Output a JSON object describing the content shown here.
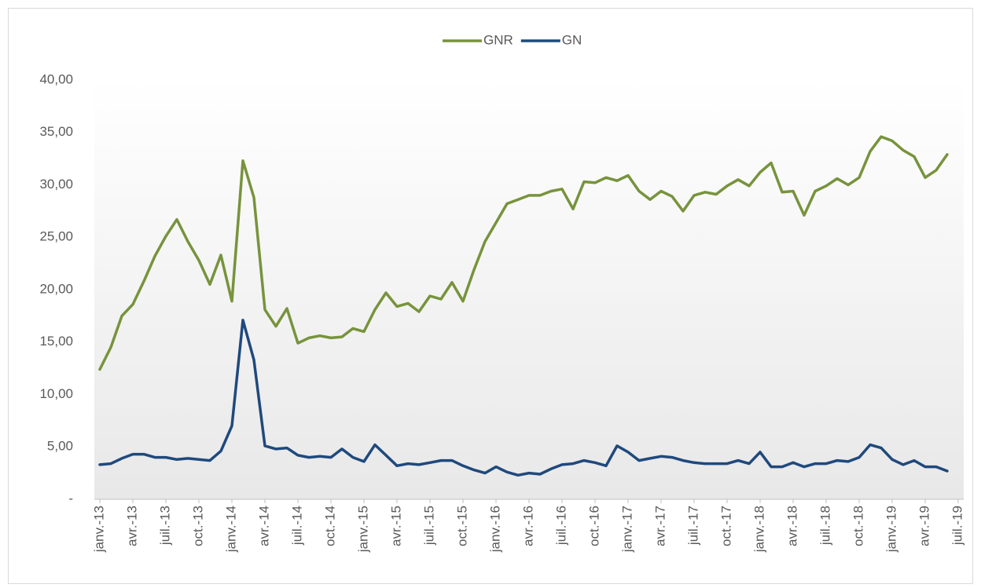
{
  "chart_data": {
    "type": "line",
    "categories": [
      "janv.-13",
      null,
      null,
      "avr.-13",
      null,
      null,
      "juil.-13",
      null,
      null,
      "oct.-13",
      null,
      null,
      "janv.-14",
      null,
      null,
      "avr.-14",
      null,
      null,
      "juil.-14",
      null,
      null,
      "oct.-14",
      null,
      null,
      "janv.-15",
      null,
      null,
      "avr.-15",
      null,
      null,
      "juil.-15",
      null,
      null,
      "oct.-15",
      null,
      null,
      "janv.-16",
      null,
      null,
      "avr.-16",
      null,
      null,
      "juil.-16",
      null,
      null,
      "oct.-16",
      null,
      null,
      "janv.-17",
      null,
      null,
      "avr.-17",
      null,
      null,
      "juil.-17",
      null,
      null,
      "oct.-17",
      null,
      null,
      "janv.-18",
      null,
      null,
      "avr.-18",
      null,
      null,
      "juil.-18",
      null,
      null,
      "oct.-18",
      null,
      null,
      "janv.-19",
      null,
      null,
      "avr.-19",
      null,
      null,
      "juil.-19"
    ],
    "series": [
      {
        "name": "GNR",
        "color": "#77933c",
        "values": [
          12.4,
          14.5,
          17.5,
          18.6,
          20.8,
          23.2,
          25.1,
          26.7,
          24.6,
          22.8,
          20.5,
          23.3,
          18.9,
          32.3,
          28.8,
          18.1,
          16.5,
          18.2,
          14.9,
          15.4,
          15.6,
          15.4,
          15.5,
          16.3,
          16.0,
          18.1,
          19.7,
          18.4,
          18.7,
          17.9,
          19.4,
          19.1,
          20.7,
          18.9,
          21.9,
          24.6,
          26.4,
          28.2,
          28.6,
          29.0,
          29.0,
          29.4,
          29.6,
          27.7,
          30.3,
          30.2,
          30.7,
          30.4,
          30.9,
          29.4,
          28.6,
          29.4,
          28.9,
          27.5,
          29.0,
          29.3,
          29.1,
          29.9,
          30.5,
          29.9,
          31.2,
          32.1,
          29.3,
          29.4,
          27.1,
          29.4,
          29.9,
          30.6,
          30.0,
          30.7,
          33.2,
          34.6,
          34.2,
          33.3,
          32.7,
          30.7,
          31.4,
          32.9,
          null
        ]
      },
      {
        "name": "GN",
        "color": "#1f497d",
        "values": [
          3.3,
          3.4,
          3.9,
          4.3,
          4.3,
          4.0,
          4.0,
          3.8,
          3.9,
          3.8,
          3.7,
          4.6,
          7.0,
          17.1,
          13.3,
          5.1,
          4.8,
          4.9,
          4.2,
          4.0,
          4.1,
          4.0,
          4.8,
          4.0,
          3.6,
          5.2,
          4.2,
          3.2,
          3.4,
          3.3,
          3.5,
          3.7,
          3.7,
          3.2,
          2.8,
          2.5,
          3.1,
          2.6,
          2.3,
          2.5,
          2.4,
          2.9,
          3.3,
          3.4,
          3.7,
          3.5,
          3.2,
          5.1,
          4.5,
          3.7,
          3.9,
          4.1,
          4.0,
          3.7,
          3.5,
          3.4,
          3.4,
          3.4,
          3.7,
          3.4,
          4.5,
          3.1,
          3.1,
          3.5,
          3.1,
          3.4,
          3.4,
          3.7,
          3.6,
          4.0,
          5.2,
          4.9,
          3.8,
          3.3,
          3.7,
          3.1,
          3.1,
          2.7,
          null
        ]
      }
    ],
    "ylim": [
      0,
      40
    ],
    "yticks": [
      {
        "value": 0,
        "label": "-"
      },
      {
        "value": 5,
        "label": "5,00"
      },
      {
        "value": 10,
        "label": "10,00"
      },
      {
        "value": 15,
        "label": "15,00"
      },
      {
        "value": 20,
        "label": "20,00"
      },
      {
        "value": 25,
        "label": "25,00"
      },
      {
        "value": 30,
        "label": "30,00"
      },
      {
        "value": 35,
        "label": "35,00"
      },
      {
        "value": 40,
        "label": "40,00"
      }
    ],
    "grid": false,
    "legend": "top"
  }
}
